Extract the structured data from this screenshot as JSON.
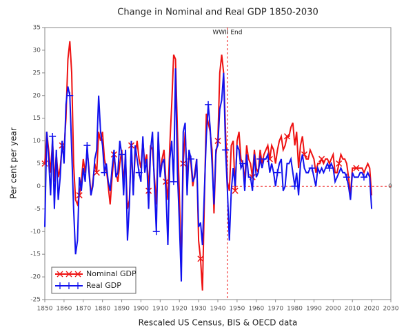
{
  "chart_data": {
    "type": "line",
    "title": "Change in Nominal and Real GDP 1850-2030",
    "x_label": "Rescaled US Census, BIS & OECD data",
    "y_label": "Per cent per year",
    "x": [
      1850,
      1851,
      1852,
      1853,
      1854,
      1855,
      1856,
      1857,
      1858,
      1859,
      1860,
      1861,
      1862,
      1863,
      1864,
      1865,
      1866,
      1867,
      1868,
      1869,
      1870,
      1871,
      1872,
      1873,
      1874,
      1875,
      1876,
      1877,
      1878,
      1879,
      1880,
      1881,
      1882,
      1883,
      1884,
      1885,
      1886,
      1887,
      1888,
      1889,
      1890,
      1891,
      1892,
      1893,
      1894,
      1895,
      1896,
      1897,
      1898,
      1899,
      1900,
      1901,
      1902,
      1903,
      1904,
      1905,
      1906,
      1907,
      1908,
      1909,
      1910,
      1911,
      1912,
      1913,
      1914,
      1915,
      1916,
      1917,
      1918,
      1919,
      1920,
      1921,
      1922,
      1923,
      1924,
      1925,
      1926,
      1927,
      1928,
      1929,
      1930,
      1931,
      1932,
      1933,
      1934,
      1935,
      1936,
      1937,
      1938,
      1939,
      1940,
      1941,
      1942,
      1943,
      1944,
      1945,
      1946,
      1947,
      1948,
      1949,
      1950,
      1951,
      1952,
      1953,
      1954,
      1955,
      1956,
      1957,
      1958,
      1959,
      1960,
      1961,
      1962,
      1963,
      1964,
      1965,
      1966,
      1967,
      1968,
      1969,
      1970,
      1971,
      1972,
      1973,
      1974,
      1975,
      1976,
      1977,
      1978,
      1979,
      1980,
      1981,
      1982,
      1983,
      1984,
      1985,
      1986,
      1987,
      1988,
      1989,
      1990,
      1991,
      1992,
      1993,
      1994,
      1995,
      1996,
      1997,
      1998,
      1999,
      2000,
      2001,
      2002,
      2003,
      2004,
      2005,
      2006,
      2007,
      2008,
      2009,
      2010,
      2011,
      2012,
      2013,
      2014,
      2015,
      2016,
      2017,
      2018,
      2019,
      2020
    ],
    "series": [
      {
        "name": "Nominal GDP",
        "color": "#ee1111",
        "marker": "x",
        "values": [
          5,
          12,
          8,
          3,
          10,
          1,
          7,
          2,
          4,
          9,
          8,
          15,
          28,
          32,
          25,
          5,
          -3,
          -4,
          -2,
          1,
          6,
          3,
          8,
          4,
          -2,
          1,
          5,
          3,
          12,
          10,
          12,
          6,
          4,
          0,
          -4,
          2,
          7,
          3,
          1,
          5,
          8,
          1,
          6,
          -5,
          -3,
          9,
          -1,
          7,
          10,
          6,
          4,
          10,
          5,
          7,
          -1,
          9,
          8,
          2,
          -4,
          11,
          3,
          6,
          8,
          1,
          -3,
          9,
          18,
          29,
          28,
          12,
          -2,
          -18,
          5,
          12,
          2,
          7,
          5,
          0,
          3,
          6,
          -12,
          -16,
          -23,
          -3,
          16,
          14,
          12,
          8,
          -6,
          7,
          10,
          25,
          29,
          25,
          12,
          1,
          -1,
          9,
          10,
          -1,
          10,
          12,
          6,
          5,
          1,
          9,
          6,
          5,
          2,
          8,
          4,
          3,
          8,
          5,
          7,
          8,
          9,
          6,
          9,
          8,
          5,
          8,
          10,
          11,
          8,
          9,
          11,
          11,
          13,
          14,
          9,
          12,
          4,
          9,
          11,
          7,
          6,
          6,
          8,
          7,
          6,
          3,
          5,
          5,
          6,
          5,
          6,
          6,
          5,
          6,
          7,
          3,
          3,
          5,
          7,
          6,
          6,
          5,
          2,
          -2,
          4,
          4,
          4,
          4,
          4,
          4,
          3,
          4,
          5,
          4,
          -2
        ]
      },
      {
        "name": "Real GDP",
        "color": "#1111ee",
        "marker": "+",
        "values": [
          -9,
          12,
          6,
          -2,
          11,
          -5,
          8,
          -3,
          2,
          10,
          5,
          18,
          22,
          20,
          8,
          -5,
          -15,
          -12,
          2,
          -1,
          4,
          1,
          9,
          3,
          -2,
          0,
          6,
          8,
          20,
          12,
          9,
          3,
          5,
          1,
          -1,
          4,
          8,
          2,
          3,
          10,
          7,
          -2,
          8,
          -12,
          -4,
          10,
          -2,
          9,
          6,
          3,
          1,
          11,
          3,
          6,
          -5,
          8,
          12,
          0,
          -10,
          12,
          2,
          5,
          6,
          -1,
          -13,
          6,
          10,
          1,
          26,
          3,
          -8,
          -21,
          12,
          14,
          -2,
          8,
          6,
          1,
          2,
          6,
          -9,
          -8,
          -13,
          -1,
          11,
          18,
          13,
          5,
          -4,
          8,
          9,
          17,
          19,
          25,
          8,
          -1,
          -12,
          -1,
          4,
          0,
          9,
          8,
          4,
          5,
          -1,
          7,
          2,
          2,
          -1,
          7,
          2,
          3,
          6,
          4,
          6,
          6,
          7,
          3,
          5,
          3,
          0,
          3,
          5,
          6,
          -1,
          0,
          5,
          5,
          6,
          3,
          0,
          3,
          -2,
          5,
          7,
          4,
          3,
          3,
          4,
          4,
          2,
          0,
          4,
          3,
          4,
          3,
          4,
          5,
          4,
          5,
          4,
          1,
          2,
          3,
          4,
          3,
          3,
          2,
          0,
          -3,
          3,
          2,
          2,
          2,
          3,
          3,
          2,
          2,
          3,
          2,
          -5
        ]
      }
    ],
    "xlim": [
      1850,
      2030
    ],
    "xticks": [
      1850,
      1860,
      1870,
      1880,
      1890,
      1900,
      1910,
      1920,
      1930,
      1940,
      1950,
      1960,
      1970,
      1980,
      1990,
      2000,
      2010,
      2020,
      2030
    ],
    "ylim": [
      -25,
      35
    ],
    "yticks": [
      -25,
      -20,
      -15,
      -10,
      -5,
      0,
      5,
      10,
      15,
      20,
      25,
      30,
      35
    ],
    "annotations": [
      {
        "text": "WWII End",
        "x": 1945
      }
    ],
    "zero_line": {
      "value": 0,
      "label": "0"
    },
    "legend": "lower-left"
  }
}
